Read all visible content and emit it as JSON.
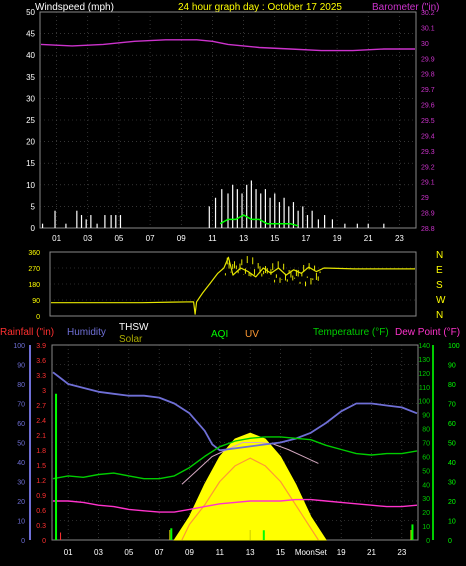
{
  "header": {
    "left_label": "Windspeed (mph)",
    "title": "24 hour graph day : October 17 2025",
    "right_label": "Barometer (\"in)"
  },
  "colors": {
    "wind": "#ffffff",
    "gust": "#00ff00",
    "barometer": "#cc33cc",
    "direction": "#e6e600",
    "humidity": "#6f6fd6",
    "temperature": "#00cc00",
    "dewpoint": "#ff33cc",
    "solar": "#ffff00",
    "uv": "#ff9933",
    "thsw": "#ffffff",
    "rain": "#ff3030",
    "aqi": "#00ff00",
    "grid": "#555555"
  },
  "legend": {
    "rainfall": "Rainfall (\"in)",
    "humidity": "Humidity",
    "thsw": "THSW",
    "solar": "Solar",
    "aqi": "AQI",
    "uv": "UV",
    "temperature": "Temperature (°F)",
    "dewpoint": "Dew Point (°F)",
    "moonset": "MoonSet"
  },
  "chart_data": [
    {
      "type": "bar",
      "name": "wind",
      "x_ticks": [
        "01",
        "03",
        "05",
        "07",
        "09",
        "11",
        "13",
        "15",
        "17",
        "19",
        "21",
        "23"
      ],
      "left_axis": {
        "label": "Windspeed (mph)",
        "ylim": [
          0,
          50
        ],
        "ticks": [
          "0",
          "5",
          "10",
          "15",
          "20",
          "25",
          "30",
          "35",
          "40",
          "45",
          "50"
        ]
      },
      "right_axis": {
        "label": "Barometer (\"in)",
        "ylim": [
          28.8,
          30.2
        ],
        "ticks": [
          "28.8",
          "28.9",
          "29",
          "29.1",
          "29.2",
          "29.3",
          "29.4",
          "29.5",
          "29.6",
          "29.7",
          "29.8",
          "29.9",
          "30",
          "30.1",
          "30.2"
        ]
      },
      "series": [
        {
          "name": "Barometer",
          "axis": "right",
          "x": [
            0,
            2,
            4,
            6,
            8,
            10,
            11,
            12,
            14,
            16,
            18,
            20,
            22,
            24
          ],
          "values": [
            29.99,
            29.98,
            29.99,
            30.01,
            30.02,
            30.02,
            30.01,
            29.99,
            29.97,
            29.96,
            29.95,
            29.95,
            29.96,
            29.96
          ]
        },
        {
          "name": "Windspeed",
          "axis": "left",
          "x": [
            0.1,
            0.9,
            1.6,
            2.3,
            2.6,
            2.9,
            3.2,
            3.6,
            4.1,
            4.5,
            4.8,
            5.1,
            10.8,
            11.2,
            11.6,
            12.0,
            12.3,
            12.6,
            12.9,
            13.2,
            13.5,
            13.8,
            14.1,
            14.4,
            14.7,
            15.0,
            15.3,
            15.6,
            15.9,
            16.2,
            16.5,
            16.8,
            17.1,
            17.4,
            17.8,
            18.2,
            18.7,
            19.5,
            20.3,
            21.0,
            22.0
          ],
          "values": [
            1,
            4,
            1,
            4,
            3,
            2,
            3,
            1,
            3,
            3,
            3,
            3,
            5,
            7,
            9,
            8,
            10,
            9,
            8,
            10,
            11,
            9,
            8,
            9,
            7,
            8,
            6,
            7,
            5,
            6,
            4,
            5,
            3,
            4,
            2,
            3,
            2,
            1,
            1,
            1,
            1
          ]
        },
        {
          "name": "Gust",
          "axis": "left",
          "x": [
            11.5,
            12.0,
            12.5,
            13.0,
            13.5,
            14.0,
            14.5,
            15.0,
            15.5,
            16.0,
            16.5
          ],
          "values": [
            1,
            2,
            2,
            3,
            2,
            2,
            1,
            1,
            1,
            1,
            0.5
          ]
        }
      ]
    },
    {
      "type": "line",
      "name": "wind-direction",
      "ylim": [
        0,
        360
      ],
      "left_ticks": [
        "0",
        "90",
        "180",
        "270",
        "360"
      ],
      "right_ticks": [
        "N",
        "W",
        "S",
        "E",
        "N"
      ],
      "x": [
        0,
        2,
        4,
        6,
        8,
        9.4,
        9.5,
        9.6,
        10,
        10.5,
        11,
        11.4,
        11.7,
        12,
        12.5,
        13,
        13.5,
        14,
        14.5,
        15,
        15.5,
        16,
        16.5,
        17,
        17.5,
        18,
        20,
        22,
        24
      ],
      "values": [
        75,
        75,
        75,
        75,
        78,
        80,
        10,
        80,
        130,
        185,
        240,
        270,
        330,
        230,
        270,
        250,
        220,
        270,
        240,
        270,
        230,
        260,
        240,
        275,
        250,
        270,
        265,
        265,
        265
      ]
    },
    {
      "type": "line",
      "name": "climate",
      "x_ticks": [
        "01",
        "03",
        "05",
        "07",
        "09",
        "11",
        "13",
        "15",
        "17",
        "19",
        "21",
        "23"
      ],
      "left_humidity_axis": {
        "ticks": [
          "0",
          "10",
          "20",
          "30",
          "40",
          "50",
          "60",
          "70",
          "80",
          "90",
          "100"
        ],
        "ylim": [
          0,
          100
        ]
      },
      "left_rain_axis": {
        "ticks": [
          "0",
          "0.3",
          "0.6",
          "0.9",
          "1.2",
          "1.5",
          "1.8",
          "2.1",
          "2.4",
          "2.7",
          "3",
          "3.3",
          "3.6",
          "3.9"
        ],
        "ylim": [
          0,
          3.9
        ]
      },
      "right_temp_axis": {
        "ticks": [
          "0",
          "10",
          "20",
          "30",
          "40",
          "50",
          "60",
          "70",
          "80",
          "90",
          "100",
          "110",
          "120",
          "130",
          "140"
        ],
        "ylim": [
          0,
          140
        ]
      },
      "right_aqi_axis": {
        "ticks": [
          "0",
          "10",
          "20",
          "30",
          "40",
          "50",
          "60",
          "70",
          "80",
          "90",
          "100"
        ],
        "ylim": [
          0,
          100
        ]
      },
      "series": [
        {
          "name": "Humidity",
          "x": [
            0,
            0.5,
            1,
            2,
            3,
            4,
            5,
            6,
            7,
            8,
            9,
            10,
            10.5,
            11,
            12,
            13,
            14,
            15,
            16,
            17,
            18,
            19,
            20,
            21,
            22,
            23,
            24
          ],
          "values": [
            86,
            83,
            80,
            78,
            76,
            75,
            74,
            74,
            73,
            70,
            65,
            56,
            49,
            46,
            47,
            48,
            49,
            50,
            52,
            55,
            60,
            66,
            70,
            70,
            69,
            68,
            65
          ]
        },
        {
          "name": "Temperature",
          "x": [
            0,
            1,
            2,
            3,
            4,
            5,
            6,
            7,
            8,
            9,
            10,
            11,
            12,
            13,
            14,
            15,
            16,
            17,
            18,
            19,
            20,
            21,
            22,
            23,
            24
          ],
          "values": [
            44,
            46,
            45,
            47,
            48,
            46,
            44,
            44,
            46,
            52,
            60,
            67,
            71,
            73,
            74,
            74,
            73,
            72,
            68,
            65,
            62,
            61,
            62,
            62,
            64
          ]
        },
        {
          "name": "Dew Point",
          "x": [
            0,
            1,
            2,
            3,
            4,
            5,
            6,
            7,
            8,
            9,
            10,
            11,
            12,
            13,
            14,
            15,
            16,
            17,
            18,
            19,
            20,
            21,
            22,
            23,
            24
          ],
          "values": [
            28,
            28,
            27,
            25,
            24,
            22,
            21,
            20,
            20,
            22,
            24,
            26,
            27,
            28,
            28,
            28,
            29,
            29,
            28,
            27,
            26,
            25,
            24,
            24,
            25
          ]
        },
        {
          "name": "Solar",
          "x": [
            8,
            9,
            10,
            11,
            12,
            13,
            14,
            15,
            16,
            17,
            18
          ],
          "values": [
            0,
            160,
            380,
            570,
            690,
            730,
            690,
            570,
            380,
            160,
            0
          ]
        },
        {
          "name": "UV",
          "x": [
            8.5,
            9,
            10,
            11,
            12,
            13,
            14,
            15,
            16,
            17,
            17.5
          ],
          "values": [
            0,
            0.8,
            1.8,
            3.0,
            3.8,
            4.2,
            3.8,
            3.0,
            1.8,
            0.6,
            0
          ]
        },
        {
          "name": "THSW",
          "x": [
            8.5,
            9.5,
            10.5,
            11.5,
            12.5,
            13.5,
            14.5,
            15.5,
            16.5,
            17.5
          ],
          "values": [
            40,
            50,
            60,
            65,
            70,
            70,
            69,
            65,
            60,
            55
          ]
        },
        {
          "name": "AQI",
          "x": [
            0.2,
            0.3,
            7.8,
            8.0,
            13.9,
            14.0,
            23.7,
            23.8
          ],
          "values": [
            75,
            0,
            6,
            0,
            5,
            0,
            8,
            0
          ]
        }
      ],
      "rain_spikes": [
        {
          "x": 0.3,
          "value": 0.15
        }
      ]
    }
  ]
}
